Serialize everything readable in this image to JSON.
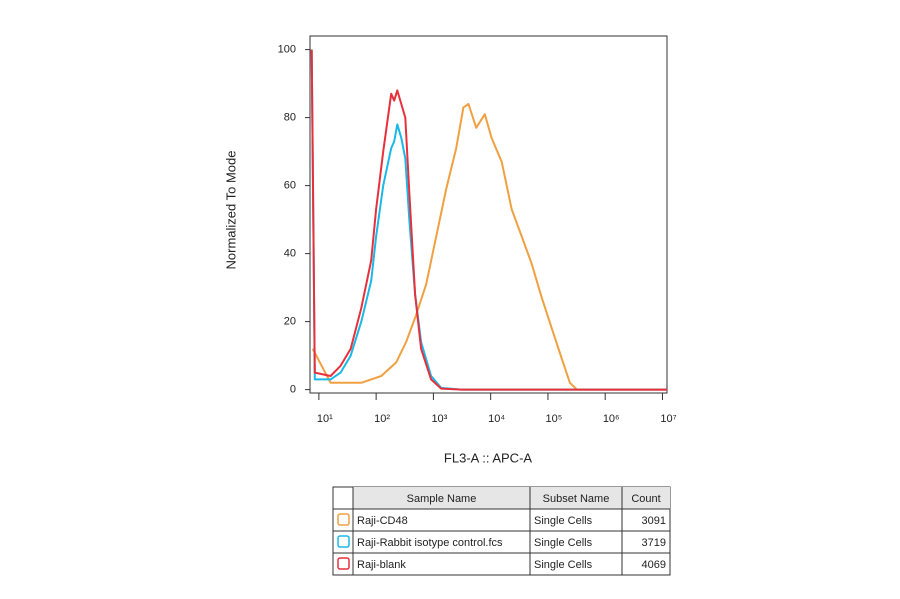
{
  "chart_data": {
    "type": "line",
    "x_label": "FL3-A :: APC-A",
    "y_label": "Normalized To Mode",
    "xscale": "log",
    "xlim": [
      7,
      12000000
    ],
    "ylim": [
      -1,
      104
    ],
    "xticks": [
      {
        "value": 10,
        "label": "10¹"
      },
      {
        "value": 100,
        "label": "10²"
      },
      {
        "value": 1000,
        "label": "10³"
      },
      {
        "value": 10000,
        "label": "10⁴"
      },
      {
        "value": 100000,
        "label": "10⁵"
      },
      {
        "value": 1000000,
        "label": "10⁶"
      },
      {
        "value": 10000000,
        "label": "10⁷"
      }
    ],
    "yticks": [
      0,
      20,
      40,
      60,
      80,
      100
    ],
    "legend_headers": [
      "Sample Name",
      "Subset Name",
      "Count"
    ],
    "series": [
      {
        "name": "Raji-CD48",
        "subset": "Single Cells",
        "count": 3091,
        "color": "#f0a040",
        "x": [
          7.8,
          16,
          55,
          123,
          224,
          334,
          500,
          750,
          1120,
          1670,
          2500,
          3340,
          4100,
          5600,
          7900,
          10400,
          15600,
          23300,
          34900,
          52000,
          78000,
          117000,
          175000,
          242000,
          320000,
          12000000
        ],
        "values": [
          12,
          2,
          2,
          4,
          8,
          14,
          22,
          31,
          45,
          59,
          71,
          83,
          84,
          77,
          81,
          74,
          67,
          53,
          45,
          37,
          27,
          18,
          9,
          2,
          0,
          0
        ]
      },
      {
        "name": "Raji-Rabbit isotype control.fcs",
        "subset": "Single Cells",
        "count": 3719,
        "color": "#1ab8e8",
        "x": [
          7.5,
          8.5,
          16,
          24,
          36,
          55,
          82,
          100,
          133,
          183,
          207,
          234,
          275,
          323,
          380,
          480,
          610,
          910,
          1370,
          3100,
          12000000
        ],
        "values": [
          100,
          3,
          3,
          5,
          10,
          20,
          32,
          45,
          60,
          71,
          73,
          78,
          74,
          68,
          50,
          28,
          14,
          4,
          0.5,
          0,
          0
        ]
      },
      {
        "name": "Raji-blank",
        "subset": "Single Cells",
        "count": 4069,
        "color": "#e8303c",
        "x": [
          7.5,
          8.5,
          16,
          24,
          36,
          55,
          82,
          100,
          133,
          183,
          207,
          234,
          275,
          323,
          380,
          480,
          610,
          910,
          1370,
          3100,
          12000000
        ],
        "values": [
          100,
          5,
          4,
          7,
          12,
          24,
          38,
          53,
          70,
          87,
          85,
          88,
          84,
          80,
          58,
          28,
          12,
          3,
          0.3,
          0,
          0
        ]
      }
    ]
  }
}
